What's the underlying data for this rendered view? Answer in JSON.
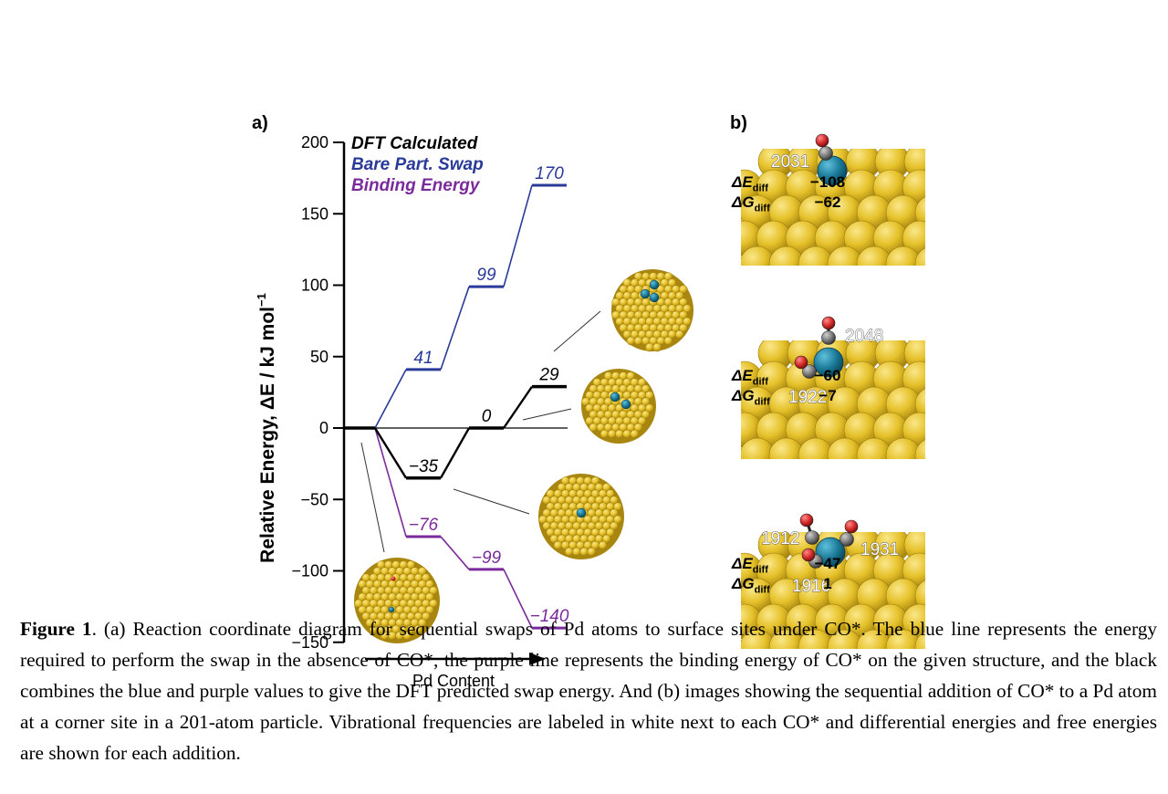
{
  "panel_a": {
    "label": "a)"
  },
  "panel_b": {
    "label": "b)"
  },
  "chart_data": {
    "type": "line",
    "ylabel": "Relative Energy, ΔE / kJ mol",
    "ylabel_sup": "−1",
    "xlabel": "Pd Content",
    "ylim": [
      -150,
      200
    ],
    "yticks": [
      200,
      150,
      100,
      50,
      0,
      -50,
      -100,
      -150
    ],
    "ytick_labels": [
      "200",
      "150",
      "100",
      "50",
      "0",
      "−50",
      "−100",
      "−150"
    ],
    "grid": false,
    "legend_position": "top-left",
    "series": [
      {
        "name": "DFT Calculated",
        "color": "#000000",
        "values": [
          0,
          -35,
          0,
          29
        ],
        "value_labels": [
          "",
          "−35",
          "0",
          "29"
        ]
      },
      {
        "name": "Bare Part. Swap",
        "color": "#2a3a98",
        "values": [
          0,
          41,
          99,
          170
        ],
        "value_labels": [
          "",
          "41",
          "99",
          "170"
        ]
      },
      {
        "name": "Binding Energy",
        "color": "#7a2a9a",
        "values": [
          0,
          -76,
          -99,
          -140
        ],
        "value_labels": [
          "",
          "−76",
          "−99",
          "−140"
        ]
      }
    ]
  },
  "structures_b": [
    {
      "frequencies": [
        "2031"
      ],
      "dE_label": "ΔE",
      "dG_label": "ΔG",
      "sub": "diff",
      "dE": "−108",
      "dG": "−62"
    },
    {
      "frequencies": [
        "2048",
        "1922"
      ],
      "dE_label": "ΔE",
      "dG_label": "ΔG",
      "sub": "diff",
      "dE": "−60",
      "dG": "−7"
    },
    {
      "frequencies": [
        "1912",
        "1931",
        "1916"
      ],
      "dE_label": "ΔE",
      "dG_label": "ΔG",
      "sub": "diff",
      "dE": "−47",
      "dG": "1"
    }
  ],
  "colors": {
    "gold": "#e8c632",
    "gold_dark": "#b8961a",
    "pd": "#1b7a98",
    "oxygen": "#d42a2a",
    "carbon": "#7a7a7a"
  },
  "caption": {
    "fig_label": "Figure 1",
    "text": ". (a) Reaction coordinate diagram for sequential swaps of Pd atoms to surface sites under CO*. The blue line represents the energy required to perform the swap in the absence of CO*, the purple line represents the binding energy of CO* on the given structure, and the black combines the blue and purple values to give the DFT predicted swap energy. And (b) images showing the sequential addition of CO* to a Pd atom at a corner site in a 201-atom particle. Vibrational frequencies are labeled in white next to each CO* and differential energies and free energies are shown for each addition."
  }
}
